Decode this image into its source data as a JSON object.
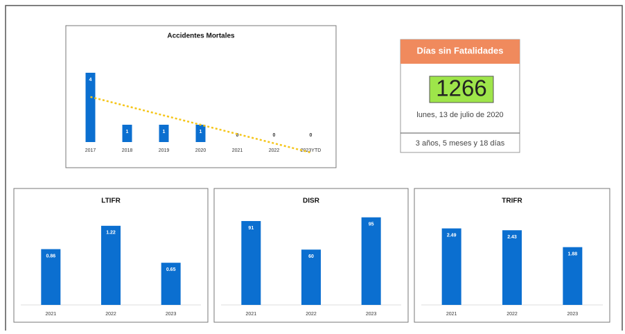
{
  "chart_data": [
    {
      "type": "bar",
      "title": "Accidentes Mortales",
      "categories": [
        "2017",
        "2018",
        "2019",
        "2020",
        "2021",
        "2022",
        "2023YTD"
      ],
      "values": [
        4,
        1,
        1,
        1,
        0,
        0,
        0
      ],
      "color": "#0b6fd0",
      "ylim": [
        0,
        4.2
      ],
      "trendline": true,
      "trend_color": "#f5c518"
    },
    {
      "type": "bar",
      "title": "LTIFR",
      "categories": [
        "2021",
        "2022",
        "2023"
      ],
      "values": [
        0.86,
        1.22,
        0.65
      ],
      "color": "#0b6fd0",
      "ylim": [
        0,
        1.4
      ]
    },
    {
      "type": "bar",
      "title": "DISR",
      "categories": [
        "2021",
        "2022",
        "2023"
      ],
      "values": [
        91,
        60,
        95
      ],
      "color": "#0b6fd0",
      "ylim": [
        0,
        100
      ]
    },
    {
      "type": "bar",
      "title": "TRIFR",
      "categories": [
        "2021",
        "2022",
        "2023"
      ],
      "values": [
        2.49,
        2.43,
        1.88
      ],
      "color": "#0b6fd0",
      "ylim": [
        0,
        3
      ]
    }
  ],
  "kpi": {
    "title": "Días sin Fatalidades",
    "value": 1266,
    "date": "lunes, 13 de julio de 2020",
    "duration": "3 años, 5 meses y 18 días"
  }
}
